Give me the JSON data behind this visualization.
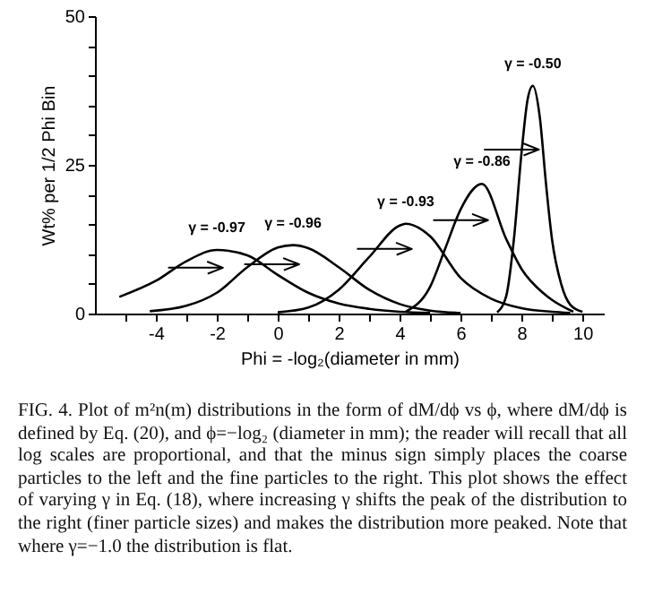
{
  "chart_data": {
    "type": "line",
    "xlabel": "Phi = -log₂(diameter in mm)",
    "ylabel": "Wt% per 1/2 Phi Bin",
    "xlim": [
      -6,
      10.7
    ],
    "ylim": [
      0,
      50
    ],
    "xticks": [
      {
        "value": -5,
        "label": null
      },
      -4,
      {
        "value": -3,
        "label": null
      },
      -2,
      {
        "value": -1,
        "label": null
      },
      0,
      {
        "value": 1,
        "label": null
      },
      2,
      {
        "value": 3,
        "label": null
      },
      4,
      {
        "value": 5,
        "label": null
      },
      6,
      {
        "value": 7,
        "label": null
      },
      8,
      {
        "value": 9,
        "label": null
      },
      10
    ],
    "yticks": [
      0,
      {
        "value": 5,
        "label": null
      },
      {
        "value": 10,
        "label": null
      },
      {
        "value": 15,
        "label": null
      },
      {
        "value": 20,
        "label": null
      },
      25,
      {
        "value": 30,
        "label": null
      },
      {
        "value": 35,
        "label": null
      },
      {
        "value": 40,
        "label": null
      },
      {
        "value": 45,
        "label": null
      },
      50
    ],
    "series": [
      {
        "name": "γ = -0.97",
        "color": "#000000",
        "x": [
          -5.2,
          -4,
          -3,
          -2,
          -1,
          0,
          1,
          2,
          3,
          4,
          5
        ],
        "values": [
          2.8,
          5.5,
          8.8,
          10.7,
          9.8,
          6.5,
          3.5,
          1.7,
          0.8,
          0.3,
          0.1
        ]
      },
      {
        "name": "γ = -0.96",
        "color": "#000000",
        "x": [
          -4.2,
          -3,
          -2,
          -1,
          0,
          0.5,
          1,
          2,
          3,
          4,
          5,
          6
        ],
        "values": [
          0.4,
          1.3,
          3.5,
          7.8,
          11.1,
          11.5,
          11,
          7.8,
          4,
          1.6,
          0.5,
          0.1
        ]
      },
      {
        "name": "γ = -0.93",
        "color": "#000000",
        "x": [
          0,
          1,
          2,
          3,
          4,
          4.2,
          5,
          6,
          7,
          8,
          9,
          9.6
        ],
        "values": [
          0.2,
          1,
          4,
          9.5,
          14.8,
          15.1,
          13,
          6,
          2.5,
          0.9,
          0.3,
          0.1
        ]
      },
      {
        "name": "γ = -0.86",
        "color": "#000000",
        "x": [
          4.2,
          5,
          5.5,
          6,
          6.7,
          7.5,
          8,
          8.7,
          9,
          9.7
        ],
        "values": [
          0.3,
          4.5,
          11,
          17.5,
          21.8,
          12.5,
          7.5,
          3.5,
          2.3,
          0.3
        ]
      },
      {
        "name": "γ = -0.50",
        "color": "#000000",
        "x": [
          7.2,
          7.5,
          7.75,
          8,
          8.2,
          8.37,
          8.6,
          8.8,
          9,
          9.3,
          9.6,
          10
        ],
        "values": [
          0.2,
          3,
          12.5,
          27,
          36,
          38.3,
          33,
          22,
          12.5,
          5,
          1.5,
          0.3
        ]
      }
    ],
    "annotations": [
      "FIG. 4. Plot of m²n(m) distributions in the form of dM/dϕ vs ϕ, where dM/dϕ is defined by Eq. (20), and ϕ=−log₂ (diameter in mm); the reader will recall that all log scales are proportional, and that the minus sign simply places the coarse particles to the left and the fine particles to the right. This plot shows the effect of varying γ in Eq. (18), where increasing γ shifts the peak of the distribution to the right (finer particle sizes) and makes the distribution more peaked. Note that where γ=−1.0 the distribution is flat."
    ]
  }
}
